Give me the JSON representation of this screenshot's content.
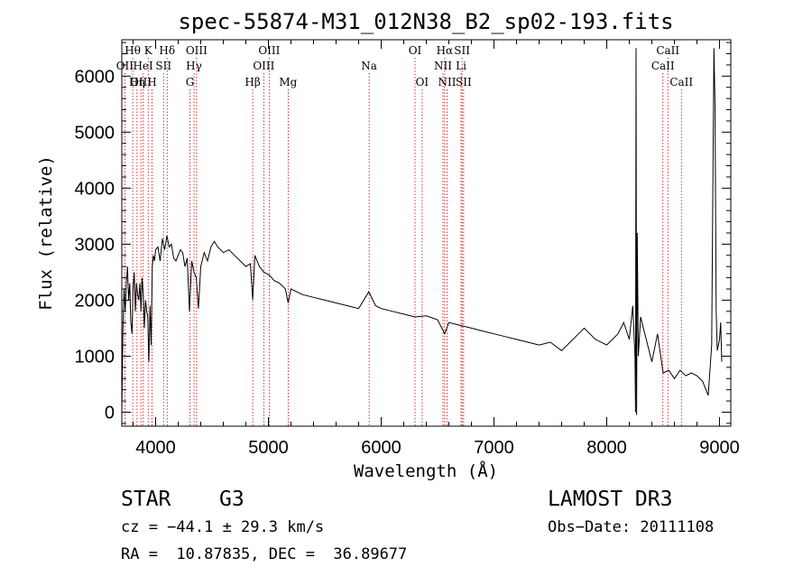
{
  "chart_data": {
    "type": "line",
    "title": "spec-55874-M31_012N38_B2_sp02-193.fits",
    "xlabel": "Wavelength (Å)",
    "ylabel": "Flux (relative)",
    "xlim": [
      3700,
      9100
    ],
    "ylim": [
      -250,
      6650
    ],
    "xticks": [
      4000,
      5000,
      6000,
      7000,
      8000,
      9000
    ],
    "yticks": [
      0,
      1000,
      2000,
      3000,
      4000,
      5000,
      6000
    ],
    "grid": false,
    "series": [
      {
        "values_x": [
          3700,
          3710,
          3720,
          3730,
          3740,
          3750,
          3760,
          3770,
          3780,
          3790,
          3800,
          3810,
          3820,
          3830,
          3840,
          3850,
          3860,
          3870,
          3880,
          3890,
          3900,
          3910,
          3920,
          3930,
          3940,
          3950,
          3960,
          3970,
          3980,
          3990,
          4000,
          4020,
          4040,
          4060,
          4080,
          4100,
          4120,
          4140,
          4160,
          4180,
          4200,
          4220,
          4240,
          4260,
          4280,
          4300,
          4320,
          4340,
          4360,
          4380,
          4400,
          4430,
          4460,
          4490,
          4520,
          4550,
          4600,
          4650,
          4700,
          4750,
          4800,
          4840,
          4861,
          4880,
          4920,
          4960,
          5007,
          5050,
          5100,
          5150,
          5175,
          5200,
          5300,
          5400,
          5500,
          5600,
          5700,
          5800,
          5890,
          5950,
          6000,
          6100,
          6200,
          6300,
          6400,
          6500,
          6563,
          6600,
          6700,
          6800,
          6900,
          7000,
          7100,
          7200,
          7300,
          7400,
          7500,
          7600,
          7700,
          7800,
          7900,
          8000,
          8100,
          8150,
          8200,
          8230,
          8250,
          8255,
          8260,
          8265,
          8270,
          8280,
          8300,
          8350,
          8400,
          8450,
          8500,
          8550,
          8600,
          8650,
          8700,
          8750,
          8800,
          8850,
          8900,
          8930,
          8950,
          8960,
          8970,
          8980,
          8990,
          9000,
          9010,
          9020
        ],
        "values_y": [
          0,
          1500,
          2200,
          1800,
          2300,
          2600,
          2000,
          2300,
          1600,
          1400,
          2200,
          2500,
          1800,
          2300,
          2100,
          2000,
          2300,
          1800,
          2400,
          2100,
          1500,
          2000,
          1800,
          1700,
          900,
          1900,
          1200,
          2600,
          2800,
          2700,
          2900,
          2950,
          2700,
          3100,
          2900,
          3150,
          2950,
          3000,
          2750,
          2700,
          2800,
          2900,
          2850,
          2600,
          2750,
          1800,
          2700,
          2500,
          2400,
          1850,
          2600,
          2850,
          2700,
          2950,
          3050,
          2950,
          2850,
          2900,
          2800,
          2700,
          2600,
          2650,
          2000,
          2800,
          2600,
          2500,
          2450,
          2350,
          2300,
          2200,
          1950,
          2200,
          2100,
          2050,
          2000,
          1950,
          1900,
          1850,
          2150,
          1900,
          1850,
          1800,
          1750,
          1700,
          1720,
          1650,
          1400,
          1600,
          1550,
          1500,
          1450,
          1400,
          1350,
          1300,
          1250,
          1200,
          1250,
          1100,
          1300,
          1500,
          1300,
          1200,
          1400,
          1600,
          1300,
          1900,
          1000,
          0,
          6500,
          -50,
          3200,
          1000,
          1700,
          1300,
          900,
          1400,
          700,
          750,
          600,
          750,
          650,
          700,
          650,
          550,
          300,
          1200,
          6500,
          5500,
          1800,
          1100,
          1200,
          1300,
          1600,
          900
        ]
      }
    ],
    "spectral_lines": [
      {
        "name": "Hθ",
        "x": 3797,
        "row": 0
      },
      {
        "name": "OII",
        "x": 3727,
        "row": 1
      },
      {
        "name": "OIII",
        "x": 3869,
        "row": 2
      },
      {
        "name": "K",
        "x": 3934,
        "row": 0
      },
      {
        "name": "HeI",
        "x": 3889,
        "row": 1
      },
      {
        "name": "Hη",
        "x": 3835,
        "row": 2
      },
      {
        "name": "Hδ",
        "x": 4102,
        "row": 0
      },
      {
        "name": "SII",
        "x": 4070,
        "row": 1
      },
      {
        "name": "H",
        "x": 3968,
        "row": 2
      },
      {
        "name": "OIII",
        "x": 4363,
        "row": 0
      },
      {
        "name": "Hγ",
        "x": 4340,
        "row": 1
      },
      {
        "name": "G",
        "x": 4304,
        "row": 2
      },
      {
        "name": "OIII",
        "x": 5007,
        "row": 0
      },
      {
        "name": "OIII",
        "x": 4959,
        "row": 1
      },
      {
        "name": "Hβ",
        "x": 4861,
        "row": 2
      },
      {
        "name": "Mg",
        "x": 5175,
        "row": 2
      },
      {
        "name": "Na",
        "x": 5893,
        "row": 1
      },
      {
        "name": "OI",
        "x": 6300,
        "row": 0
      },
      {
        "name": "OI",
        "x": 6363,
        "row": 2
      },
      {
        "name": "Hα",
        "x": 6563,
        "row": 0
      },
      {
        "name": "SII",
        "x": 6717,
        "row": 0
      },
      {
        "name": "NII",
        "x": 6548,
        "row": 1
      },
      {
        "name": "Li",
        "x": 6708,
        "row": 1
      },
      {
        "name": "NII",
        "x": 6584,
        "row": 2
      },
      {
        "name": "SII",
        "x": 6731,
        "row": 2
      },
      {
        "name": "CaII",
        "x": 8542,
        "row": 0
      },
      {
        "name": "CaII",
        "x": 8498,
        "row": 1
      },
      {
        "name": "CaII",
        "x": 8662,
        "row": 2
      }
    ],
    "colors": {
      "line": "#000000",
      "marker": "#cc0000"
    }
  },
  "info": {
    "class": "STAR",
    "subclass": "G3",
    "survey": "LAMOST DR3",
    "cz": "cz = −44.1 ± 29.3 km/s",
    "obs_date": "Obs−Date: 20111108",
    "radec": "RA =  10.87835, DEC =  36.89677"
  }
}
